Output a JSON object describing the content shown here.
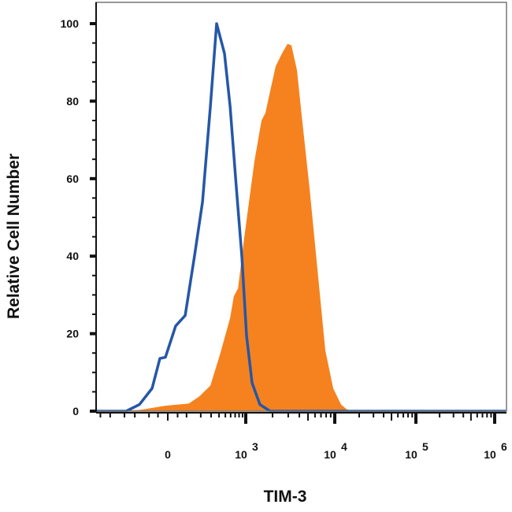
{
  "chart_data": {
    "type": "area",
    "title": "",
    "xlabel": "TIM-3",
    "ylabel": "Relative Cell Number",
    "x_scale": "biexponential",
    "xlim": [
      -800,
      1400000
    ],
    "ylim": [
      0,
      100
    ],
    "grid": false,
    "x_ticks": [
      {
        "value": 0,
        "base": "0",
        "exp": ""
      },
      {
        "value": 1000,
        "base": "10",
        "exp": "3"
      },
      {
        "value": 10000,
        "base": "10",
        "exp": "4"
      },
      {
        "value": 100000,
        "base": "10",
        "exp": "5"
      },
      {
        "value": 1000000,
        "base": "10",
        "exp": "6"
      }
    ],
    "y_ticks": [
      "0",
      "20",
      "40",
      "60",
      "80",
      "100"
    ],
    "series": [
      {
        "style": "filled",
        "color": "#f5821f",
        "x": [
          -800,
          -164,
          -12,
          115,
          188,
          292,
          420,
          588,
          669,
          772,
          955,
          1251,
          1503,
          1664,
          1880,
          2168,
          2551,
          2945,
          3259,
          3758,
          4250,
          5209,
          6385,
          7827,
          9600,
          11960,
          14960,
          1400000
        ],
        "y": [
          0,
          0.3,
          1.4,
          2,
          3.8,
          6.6,
          15,
          24,
          29.6,
          31.7,
          45,
          64.5,
          75,
          77,
          82.6,
          89,
          92.3,
          94.8,
          94.4,
          88,
          76.3,
          57.5,
          36.6,
          15.7,
          5.9,
          1.7,
          0,
          0
        ]
      },
      {
        "style": "outline",
        "color": "#2557a7",
        "x": [
          -800,
          -282,
          -164,
          -82,
          -40,
          -12,
          40,
          92,
          152,
          215,
          292,
          367,
          485,
          588,
          728,
          879,
          1020,
          1177,
          1443,
          1880,
          1400000
        ],
        "y": [
          0,
          0,
          1.7,
          5.9,
          13.6,
          13.9,
          22,
          24.7,
          40,
          54,
          78.7,
          100,
          92.3,
          78.7,
          57.8,
          40,
          19.5,
          7.3,
          1.7,
          0,
          0
        ]
      }
    ]
  }
}
